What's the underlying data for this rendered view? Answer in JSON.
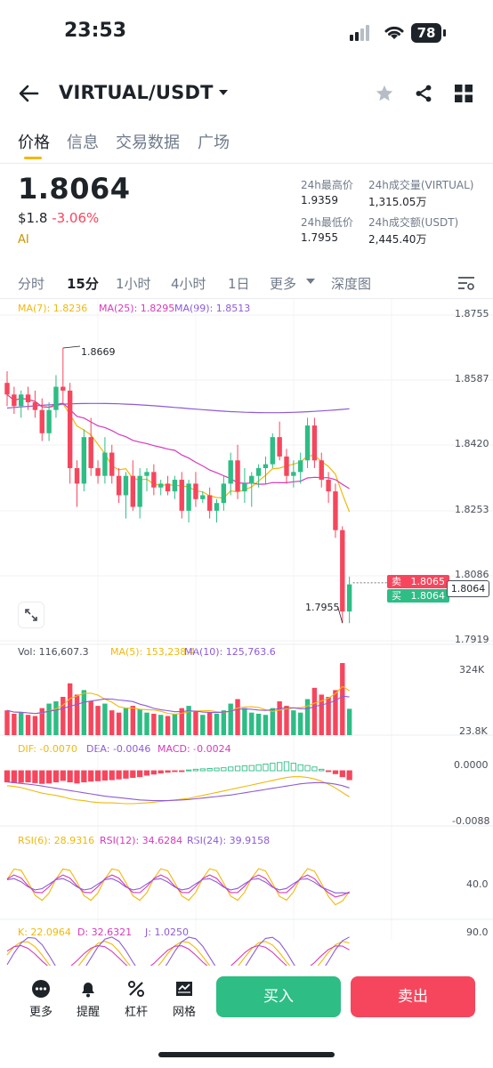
{
  "status": {
    "time": "23:53",
    "battery": "78"
  },
  "header": {
    "pair": "VIRTUAL/USDT"
  },
  "tabs": [
    "价格",
    "信息",
    "交易数据",
    "广场"
  ],
  "ticker": {
    "price": "1.8064",
    "fiat": "$1.8",
    "change": "-3.06%",
    "ai_label": "AI",
    "high_label": "24h最高价",
    "high": "1.9359",
    "low_label": "24h最低价",
    "low": "1.7955",
    "vol_label": "24h成交量(VIRTUAL)",
    "vol": "1,315.05万",
    "amt_label": "24h成交额(USDT)",
    "amt": "2,445.40万"
  },
  "intervals": [
    "分时",
    "15分",
    "1小时",
    "4小时",
    "1日",
    "更多",
    "深度图"
  ],
  "indicators": {
    "ma7": "MA(7): 1.8236",
    "ma25": "MA(25): 1.8295",
    "ma99": "MA(99): 1.8513",
    "vol": "Vol: 116,607.3",
    "vma5": "MA(5): 153,238.4",
    "vma10": "MA(10): 125,763.6",
    "dif": "DIF: -0.0070",
    "dea": "DEA: -0.0046",
    "macd": "MACD: -0.0024",
    "rsi6": "RSI(6): 28.9316",
    "rsi12": "RSI(12): 34.6284",
    "rsi24": "RSI(24): 39.9158",
    "k": "K: 22.0964",
    "d": "D: 32.6321",
    "j": "J: 1.0250"
  },
  "price_axis": [
    "1.8755",
    "1.8587",
    "1.8420",
    "1.8253",
    "1.8086",
    "1.7919"
  ],
  "annotations": {
    "high": "1.8669",
    "low": "1.7955"
  },
  "order_tags": {
    "sell_label": "卖",
    "sell": "1.8065",
    "buy_label": "买",
    "buy": "1.8064",
    "current": "1.8064"
  },
  "vol_axis": [
    "324K",
    "23.8K"
  ],
  "macd_axis": [
    "0.0000",
    "-0.0088"
  ],
  "rsi_axis": [
    "40.0"
  ],
  "kdj_axis": [
    "90.0"
  ],
  "bottom": {
    "more": "更多",
    "alert": "提醒",
    "leverage": "杠杆",
    "grid": "网格",
    "buy": "买入",
    "sell": "卖出"
  },
  "colors": {
    "up": "#2ebd85",
    "down": "#f6465d",
    "accent": "#f0b90b",
    "ma7": "#f0b90b",
    "ma25": "#d63ab9",
    "ma99": "#8d5bd6"
  },
  "chart_data": {
    "type": "candlestick",
    "interval": "15分",
    "ohlc": [
      [
        1.858,
        1.861,
        1.852,
        1.855
      ],
      [
        1.855,
        1.857,
        1.85,
        1.852
      ],
      [
        1.852,
        1.856,
        1.849,
        1.855
      ],
      [
        1.855,
        1.857,
        1.851,
        1.853
      ],
      [
        1.853,
        1.856,
        1.849,
        1.851
      ],
      [
        1.851,
        1.854,
        1.843,
        1.845
      ],
      [
        1.845,
        1.853,
        1.843,
        1.851
      ],
      [
        1.851,
        1.86,
        1.849,
        1.857
      ],
      [
        1.857,
        1.867,
        1.853,
        1.856
      ],
      [
        1.856,
        1.858,
        1.832,
        1.836
      ],
      [
        1.836,
        1.838,
        1.826,
        1.832
      ],
      [
        1.832,
        1.846,
        1.83,
        1.844
      ],
      [
        1.844,
        1.849,
        1.834,
        1.836
      ],
      [
        1.836,
        1.838,
        1.832,
        1.834
      ],
      [
        1.834,
        1.844,
        1.832,
        1.84
      ],
      [
        1.84,
        1.842,
        1.832,
        1.834
      ],
      [
        1.834,
        1.836,
        1.827,
        1.829
      ],
      [
        1.829,
        1.835,
        1.823,
        1.834
      ],
      [
        1.834,
        1.838,
        1.825,
        1.826
      ],
      [
        1.826,
        1.836,
        1.823,
        1.834
      ],
      [
        1.834,
        1.836,
        1.83,
        1.835
      ],
      [
        1.835,
        1.837,
        1.829,
        1.831
      ],
      [
        1.831,
        1.833,
        1.829,
        1.832
      ],
      [
        1.832,
        1.834,
        1.829,
        1.83
      ],
      [
        1.83,
        1.834,
        1.828,
        1.833
      ],
      [
        1.833,
        1.835,
        1.823,
        1.825
      ],
      [
        1.825,
        1.833,
        1.822,
        1.832
      ],
      [
        1.832,
        1.835,
        1.826,
        1.828
      ],
      [
        1.828,
        1.83,
        1.827,
        1.829
      ],
      [
        1.829,
        1.831,
        1.823,
        1.825
      ],
      [
        1.825,
        1.828,
        1.822,
        1.827
      ],
      [
        1.827,
        1.834,
        1.825,
        1.832
      ],
      [
        1.832,
        1.84,
        1.829,
        1.838
      ],
      [
        1.838,
        1.842,
        1.828,
        1.83
      ],
      [
        1.83,
        1.836,
        1.827,
        1.832
      ],
      [
        1.832,
        1.835,
        1.826,
        1.834
      ],
      [
        1.834,
        1.837,
        1.831,
        1.836
      ],
      [
        1.836,
        1.839,
        1.832,
        1.837
      ],
      [
        1.837,
        1.845,
        1.836,
        1.844
      ],
      [
        1.844,
        1.848,
        1.838,
        1.839
      ],
      [
        1.839,
        1.841,
        1.832,
        1.834
      ],
      [
        1.834,
        1.838,
        1.831,
        1.835
      ],
      [
        1.835,
        1.84,
        1.832,
        1.838
      ],
      [
        1.838,
        1.849,
        1.836,
        1.847
      ],
      [
        1.847,
        1.849,
        1.836,
        1.838
      ],
      [
        1.838,
        1.84,
        1.831,
        1.833
      ],
      [
        1.833,
        1.835,
        1.827,
        1.83
      ],
      [
        1.83,
        1.832,
        1.818,
        1.82
      ],
      [
        1.82,
        1.821,
        1.796,
        1.799
      ],
      [
        1.799,
        1.808,
        1.796,
        1.806
      ]
    ],
    "volume_k": [
      110,
      95,
      100,
      90,
      85,
      120,
      140,
      150,
      170,
      230,
      180,
      200,
      150,
      130,
      140,
      110,
      100,
      120,
      130,
      115,
      100,
      95,
      90,
      85,
      95,
      120,
      130,
      105,
      90,
      100,
      95,
      110,
      140,
      160,
      120,
      100,
      95,
      90,
      120,
      150,
      130,
      110,
      100,
      160,
      210,
      180,
      170,
      200,
      320,
      117
    ],
    "macd_hist": [
      -0.003,
      -0.0032,
      -0.0031,
      -0.003,
      -0.0032,
      -0.0034,
      -0.0033,
      -0.003,
      -0.0026,
      -0.003,
      -0.0033,
      -0.003,
      -0.0028,
      -0.0027,
      -0.0025,
      -0.0024,
      -0.0022,
      -0.002,
      -0.0018,
      -0.0016,
      -0.0012,
      -0.0009,
      -0.0006,
      -0.0004,
      -0.0002,
      -0.0001,
      0.0002,
      0.0004,
      0.0005,
      0.0006,
      0.0007,
      0.0008,
      0.001,
      0.0012,
      0.0013,
      0.0014,
      0.0016,
      0.0018,
      0.002,
      0.0022,
      0.0024,
      0.002,
      0.0016,
      0.0014,
      0.001,
      0.0004,
      -0.0002,
      -0.0008,
      -0.0016,
      -0.0024
    ],
    "dif": [
      -0.004,
      -0.0042,
      -0.0045,
      -0.005,
      -0.0055,
      -0.006,
      -0.0063,
      -0.0066,
      -0.007,
      -0.0075,
      -0.0078,
      -0.008,
      -0.0083,
      -0.0085,
      -0.0086,
      -0.0086,
      -0.0087,
      -0.0088,
      -0.0088,
      -0.0087,
      -0.0086,
      -0.0084,
      -0.0082,
      -0.008,
      -0.0078,
      -0.0076,
      -0.0074,
      -0.007,
      -0.0066,
      -0.0062,
      -0.0058,
      -0.0054,
      -0.005,
      -0.0046,
      -0.0042,
      -0.0038,
      -0.0034,
      -0.003,
      -0.0026,
      -0.0022,
      -0.0018,
      -0.0016,
      -0.0016,
      -0.0018,
      -0.0022,
      -0.0028,
      -0.0036,
      -0.0046,
      -0.0058,
      -0.007
    ],
    "dea": [
      -0.003,
      -0.0032,
      -0.0034,
      -0.0036,
      -0.0038,
      -0.0041,
      -0.0044,
      -0.0047,
      -0.005,
      -0.0053,
      -0.0056,
      -0.0059,
      -0.0062,
      -0.0065,
      -0.0068,
      -0.007,
      -0.0072,
      -0.0074,
      -0.0076,
      -0.0078,
      -0.0079,
      -0.008,
      -0.008,
      -0.008,
      -0.0079,
      -0.0078,
      -0.0077,
      -0.0075,
      -0.0073,
      -0.0071,
      -0.0069,
      -0.0067,
      -0.0065,
      -0.0062,
      -0.0059,
      -0.0056,
      -0.0053,
      -0.005,
      -0.0047,
      -0.0044,
      -0.0041,
      -0.0038,
      -0.0035,
      -0.0033,
      -0.0032,
      -0.0032,
      -0.0033,
      -0.0036,
      -0.004,
      -0.0046
    ]
  }
}
